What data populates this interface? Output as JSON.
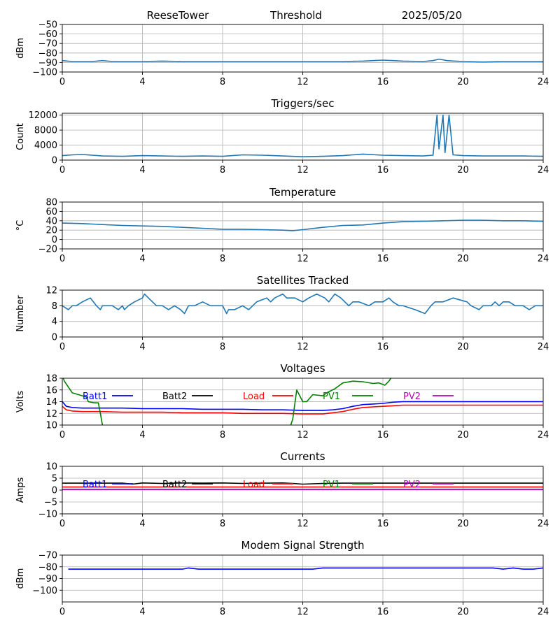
{
  "header": {
    "station": "ReeseTower",
    "mode": "Threshold",
    "date": "2025/05/20"
  },
  "chart_data": [
    {
      "id": "signal",
      "type": "line",
      "title": "",
      "xlabel": "",
      "ylabel": "dBm",
      "xlim": [
        0,
        24
      ],
      "ylim": [
        -100,
        -50
      ],
      "xticks": [
        0,
        4,
        8,
        12,
        16,
        20,
        24
      ],
      "yticks": [
        -100,
        -90,
        -80,
        -70,
        -60,
        -50
      ],
      "grid": true,
      "series": [
        {
          "color": "#1f77b4",
          "x": [
            0,
            0.5,
            1,
            1.5,
            2,
            2.5,
            3,
            4,
            5,
            6,
            7,
            8,
            9,
            10,
            11,
            12,
            13,
            14,
            15,
            15.5,
            16,
            16.5,
            17,
            18,
            18.5,
            18.8,
            19.2,
            19.6,
            20,
            21,
            22,
            23,
            24
          ],
          "y": [
            -88,
            -89,
            -89,
            -89,
            -88,
            -89,
            -89,
            -89,
            -88.5,
            -89,
            -89,
            -89,
            -89,
            -89,
            -89,
            -89,
            -89,
            -89,
            -88.5,
            -88,
            -87.5,
            -88,
            -88.5,
            -89,
            -88,
            -86.5,
            -88,
            -88.5,
            -89,
            -89.5,
            -89,
            -89,
            -89
          ]
        }
      ]
    },
    {
      "id": "triggers",
      "type": "line",
      "title": "Triggers/sec",
      "xlabel": "",
      "ylabel": "Count",
      "xlim": [
        0,
        24
      ],
      "ylim": [
        0,
        12500
      ],
      "xticks": [
        0,
        4,
        8,
        12,
        16,
        20,
        24
      ],
      "yticks": [
        0,
        4000,
        8000,
        12000
      ],
      "grid": true,
      "series": [
        {
          "color": "#1f77b4",
          "x": [
            0,
            0.5,
            1,
            1.5,
            2,
            3,
            4,
            5,
            6,
            7,
            8,
            9,
            10,
            11,
            12,
            13,
            14,
            15,
            16,
            17,
            18,
            18.5,
            18.7,
            18.8,
            19,
            19.1,
            19.3,
            19.5,
            20,
            21,
            22,
            23,
            24
          ],
          "y": [
            1200,
            1400,
            1500,
            1300,
            1100,
            1000,
            1200,
            1100,
            1000,
            1100,
            1000,
            1400,
            1300,
            1100,
            900,
            1000,
            1200,
            1600,
            1300,
            1200,
            1100,
            1300,
            12000,
            3000,
            12000,
            2000,
            12000,
            1400,
            1200,
            1100,
            1100,
            1100,
            1000
          ]
        }
      ]
    },
    {
      "id": "temperature",
      "type": "line",
      "title": "Temperature",
      "xlabel": "",
      "ylabel": "°C",
      "xlim": [
        0,
        24
      ],
      "ylim": [
        -20,
        80
      ],
      "xticks": [
        0,
        4,
        8,
        12,
        16,
        20,
        24
      ],
      "yticks": [
        -20,
        0,
        20,
        40,
        60,
        80
      ],
      "grid": true,
      "series": [
        {
          "color": "#1f77b4",
          "x": [
            0,
            1,
            2,
            3,
            4,
            5,
            6,
            7,
            8,
            9,
            10,
            11,
            11.5,
            12,
            13,
            14,
            15,
            16,
            17,
            18,
            19,
            20,
            21,
            22,
            23,
            24
          ],
          "y": [
            35,
            34,
            32,
            30,
            29,
            28,
            26,
            24,
            22,
            22,
            21,
            20,
            19,
            21,
            26,
            30,
            31,
            35,
            38,
            39,
            40,
            41,
            41,
            40,
            40,
            39
          ]
        }
      ]
    },
    {
      "id": "satellites",
      "type": "line",
      "title": "Satellites Tracked",
      "xlabel": "",
      "ylabel": "Number",
      "xlim": [
        0,
        24
      ],
      "ylim": [
        0,
        12
      ],
      "xticks": [
        0,
        4,
        8,
        12,
        16,
        20,
        24
      ],
      "yticks": [
        0,
        4,
        8,
        12
      ],
      "grid": true,
      "series": [
        {
          "color": "#1f77b4",
          "x": [
            0,
            0.3,
            0.5,
            0.7,
            1.0,
            1.4,
            1.7,
            1.9,
            2.0,
            2.3,
            2.5,
            2.8,
            3.0,
            3.1,
            3.3,
            3.6,
            4.0,
            4.1,
            4.5,
            4.7,
            5.0,
            5.3,
            5.6,
            5.9,
            6.1,
            6.3,
            6.6,
            7.0,
            7.4,
            8.0,
            8.2,
            8.3,
            8.6,
            9.0,
            9.3,
            9.7,
            10.2,
            10.4,
            10.6,
            11.0,
            11.2,
            11.6,
            12.0,
            12.3,
            12.7,
            13.1,
            13.3,
            13.6,
            13.9,
            14.3,
            14.5,
            14.8,
            15.3,
            15.6,
            16.0,
            16.3,
            16.5,
            16.8,
            17.0,
            17.6,
            18.1,
            18.4,
            18.6,
            19.0,
            19.5,
            20.2,
            20.4,
            20.8,
            21.0,
            21.4,
            21.6,
            21.8,
            22.0,
            22.3,
            22.6,
            23.0,
            23.3,
            23.6,
            24.0
          ],
          "y": [
            8,
            7,
            8,
            8,
            9,
            10,
            8,
            7,
            8,
            8,
            8,
            7,
            8,
            7,
            8,
            9,
            10,
            11,
            9,
            8,
            8,
            7,
            8,
            7,
            6,
            8,
            8,
            9,
            8,
            8,
            6,
            7,
            7,
            8,
            7,
            9,
            10,
            9,
            10,
            11,
            10,
            10,
            9,
            10,
            11,
            10,
            9,
            11,
            10,
            8,
            9,
            9,
            8,
            9,
            9,
            10,
            9,
            8,
            8,
            7,
            6,
            8,
            9,
            9,
            10,
            9,
            8,
            7,
            8,
            8,
            9,
            8,
            9,
            9,
            8,
            8,
            7,
            8,
            8
          ]
        }
      ]
    },
    {
      "id": "voltages",
      "type": "line",
      "title": "Voltages",
      "xlabel": "",
      "ylabel": "Volts",
      "xlim": [
        0,
        24
      ],
      "ylim": [
        10,
        18
      ],
      "xticks": [
        0,
        4,
        8,
        12,
        16,
        20,
        24
      ],
      "yticks": [
        10,
        12,
        14,
        16,
        18
      ],
      "grid": true,
      "series": [
        {
          "name": "Batt1",
          "color": "#0000ff",
          "x": [
            0,
            0.2,
            0.5,
            1,
            2,
            3,
            4,
            5,
            6,
            7,
            8,
            9,
            10,
            11,
            12,
            13,
            13.5,
            14,
            14.5,
            15,
            15.5,
            16,
            16.5,
            17,
            18,
            19,
            20,
            21,
            22,
            23,
            24
          ],
          "y": [
            14,
            13.2,
            13,
            12.9,
            12.9,
            12.9,
            12.8,
            12.8,
            12.8,
            12.7,
            12.7,
            12.7,
            12.6,
            12.6,
            12.5,
            12.5,
            12.6,
            12.8,
            13.2,
            13.5,
            13.6,
            13.7,
            13.9,
            14,
            14,
            14,
            14,
            14,
            14,
            14,
            14
          ]
        },
        {
          "name": "Batt2",
          "color": "#000000",
          "x": [],
          "y": []
        },
        {
          "name": "Load",
          "color": "#ff0000",
          "x": [
            0,
            0.2,
            0.5,
            1,
            2,
            3,
            4,
            5,
            6,
            7,
            8,
            9,
            10,
            11,
            12,
            13,
            13.5,
            14,
            14.5,
            15,
            15.5,
            16,
            16.5,
            17,
            18,
            19,
            20,
            21,
            22,
            23,
            24
          ],
          "y": [
            13.2,
            12.6,
            12.4,
            12.3,
            12.3,
            12.2,
            12.2,
            12.2,
            12.1,
            12.1,
            12.1,
            12.0,
            12.0,
            12.0,
            11.9,
            11.9,
            12.1,
            12.3,
            12.7,
            13.0,
            13.1,
            13.2,
            13.3,
            13.4,
            13.4,
            13.4,
            13.4,
            13.4,
            13.4,
            13.4,
            13.4
          ]
        },
        {
          "name": "PV1",
          "color": "#008000",
          "x": [
            0,
            0.1,
            0.3,
            0.5,
            1,
            1.2,
            1.3,
            1.6,
            1.8,
            1.9,
            2.0,
            2.2,
            11.3,
            11.5,
            11.7,
            12.0,
            12.2,
            12.5,
            13.0,
            13.2,
            13.6,
            14.0,
            14.5,
            15.0,
            15.5,
            15.8,
            16.1,
            16.3,
            16.5
          ],
          "y": [
            18.5,
            17.5,
            16.5,
            15.5,
            15,
            14.8,
            14,
            13.8,
            13.8,
            12,
            10,
            9,
            9,
            11,
            16,
            14,
            14,
            15.2,
            15,
            15.5,
            16.2,
            17.2,
            17.5,
            17.4,
            17.1,
            17.2,
            16.8,
            17.5,
            18.5
          ]
        },
        {
          "name": "PV2",
          "color": "#bf00bf",
          "x": [],
          "y": []
        }
      ]
    },
    {
      "id": "currents",
      "type": "line",
      "title": "Currents",
      "xlabel": "",
      "ylabel": "Amps",
      "xlim": [
        0,
        24
      ],
      "ylim": [
        -10,
        10
      ],
      "xticks": [
        0,
        4,
        8,
        12,
        16,
        20,
        24
      ],
      "yticks": [
        -10,
        -5,
        0,
        5,
        10
      ],
      "grid": true,
      "series": [
        {
          "name": "Batt1",
          "color": "#0000ff",
          "x": [
            0,
            24
          ],
          "y": [
            0.3,
            0.3
          ]
        },
        {
          "name": "Batt2",
          "color": "#000000",
          "x": [
            0,
            1,
            2,
            3,
            3.5,
            4,
            5,
            6,
            7,
            8,
            9,
            10,
            11,
            11.5,
            12,
            13,
            14,
            15,
            16,
            17,
            18,
            19,
            20,
            21,
            22,
            23,
            24
          ],
          "y": [
            2.9,
            2.9,
            2.9,
            2.9,
            2.5,
            3.0,
            2.8,
            3.0,
            2.9,
            3.0,
            2.8,
            2.9,
            3.0,
            2.8,
            2.5,
            2.8,
            2.9,
            2.9,
            2.9,
            2.9,
            2.9,
            2.9,
            2.9,
            2.9,
            2.9,
            2.9,
            2.9
          ]
        },
        {
          "name": "Load",
          "color": "#ff0000",
          "x": [
            0,
            24
          ],
          "y": [
            1.3,
            1.3
          ]
        },
        {
          "name": "PV1",
          "color": "#008000",
          "x": [],
          "y": []
        },
        {
          "name": "PV2",
          "color": "#bf00bf",
          "x": [
            0,
            24
          ],
          "y": [
            0.3,
            0.3
          ]
        }
      ]
    },
    {
      "id": "modem",
      "type": "line",
      "title": "Modem Signal Strength",
      "xlabel": "",
      "ylabel": "dBm",
      "xlim": [
        0,
        24
      ],
      "ylim": [
        -110,
        -70
      ],
      "xticks": [
        0,
        4,
        8,
        12,
        16,
        20,
        24
      ],
      "yticks": [
        -100,
        -90,
        -80,
        -70
      ],
      "grid": true,
      "series": [
        {
          "color": "#0000ff",
          "x": [
            0.3,
            1,
            2,
            3,
            4,
            5,
            6,
            6.3,
            6.8,
            7.5,
            8,
            9,
            10,
            11,
            12,
            12.5,
            13,
            14,
            15,
            16,
            17,
            18,
            19,
            20,
            21,
            21.5,
            22,
            22.5,
            23,
            23.5,
            24
          ],
          "y": [
            -82,
            -82,
            -82,
            -82,
            -82,
            -82,
            -82,
            -81,
            -82,
            -82,
            -82,
            -82,
            -82,
            -82,
            -82,
            -82,
            -81,
            -81,
            -81,
            -81,
            -81,
            -81,
            -81,
            -81,
            -81,
            -81,
            -82,
            -81,
            -82,
            -82,
            -81
          ]
        }
      ]
    }
  ]
}
